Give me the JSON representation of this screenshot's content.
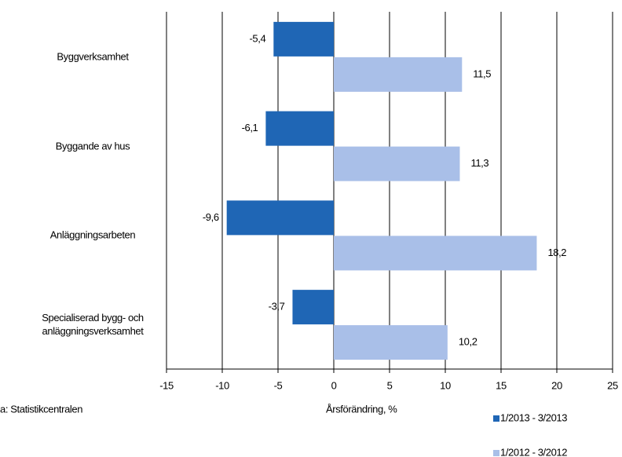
{
  "chart_data": {
    "type": "bar",
    "orientation": "horizontal",
    "categories": [
      "Byggverksamhet",
      "Byggande av hus",
      "Anläggningsarbeten",
      "Specialiserad bygg- och anläggningsverksamhet"
    ],
    "series": [
      {
        "name": "1/2013 - 3/2013",
        "color": "#1f66b5",
        "values": [
          -5.4,
          -6.1,
          -9.6,
          -3.7
        ],
        "value_labels": [
          "-5,4",
          "-6,1",
          "-9,6",
          "-3,7"
        ]
      },
      {
        "name": "1/2012 - 3/2012",
        "color": "#a9bfe8",
        "values": [
          11.5,
          11.3,
          18.2,
          10.2
        ],
        "value_labels": [
          "11,5",
          "11,3",
          "18,2",
          "10,2"
        ]
      }
    ],
    "xlabel": "Årsförändring, %",
    "source": "a: Statistikcentralen",
    "xlim": [
      -15,
      25
    ],
    "xticks": [
      -15,
      -10,
      -5,
      0,
      5,
      10,
      15,
      20,
      25
    ],
    "grid": true
  }
}
